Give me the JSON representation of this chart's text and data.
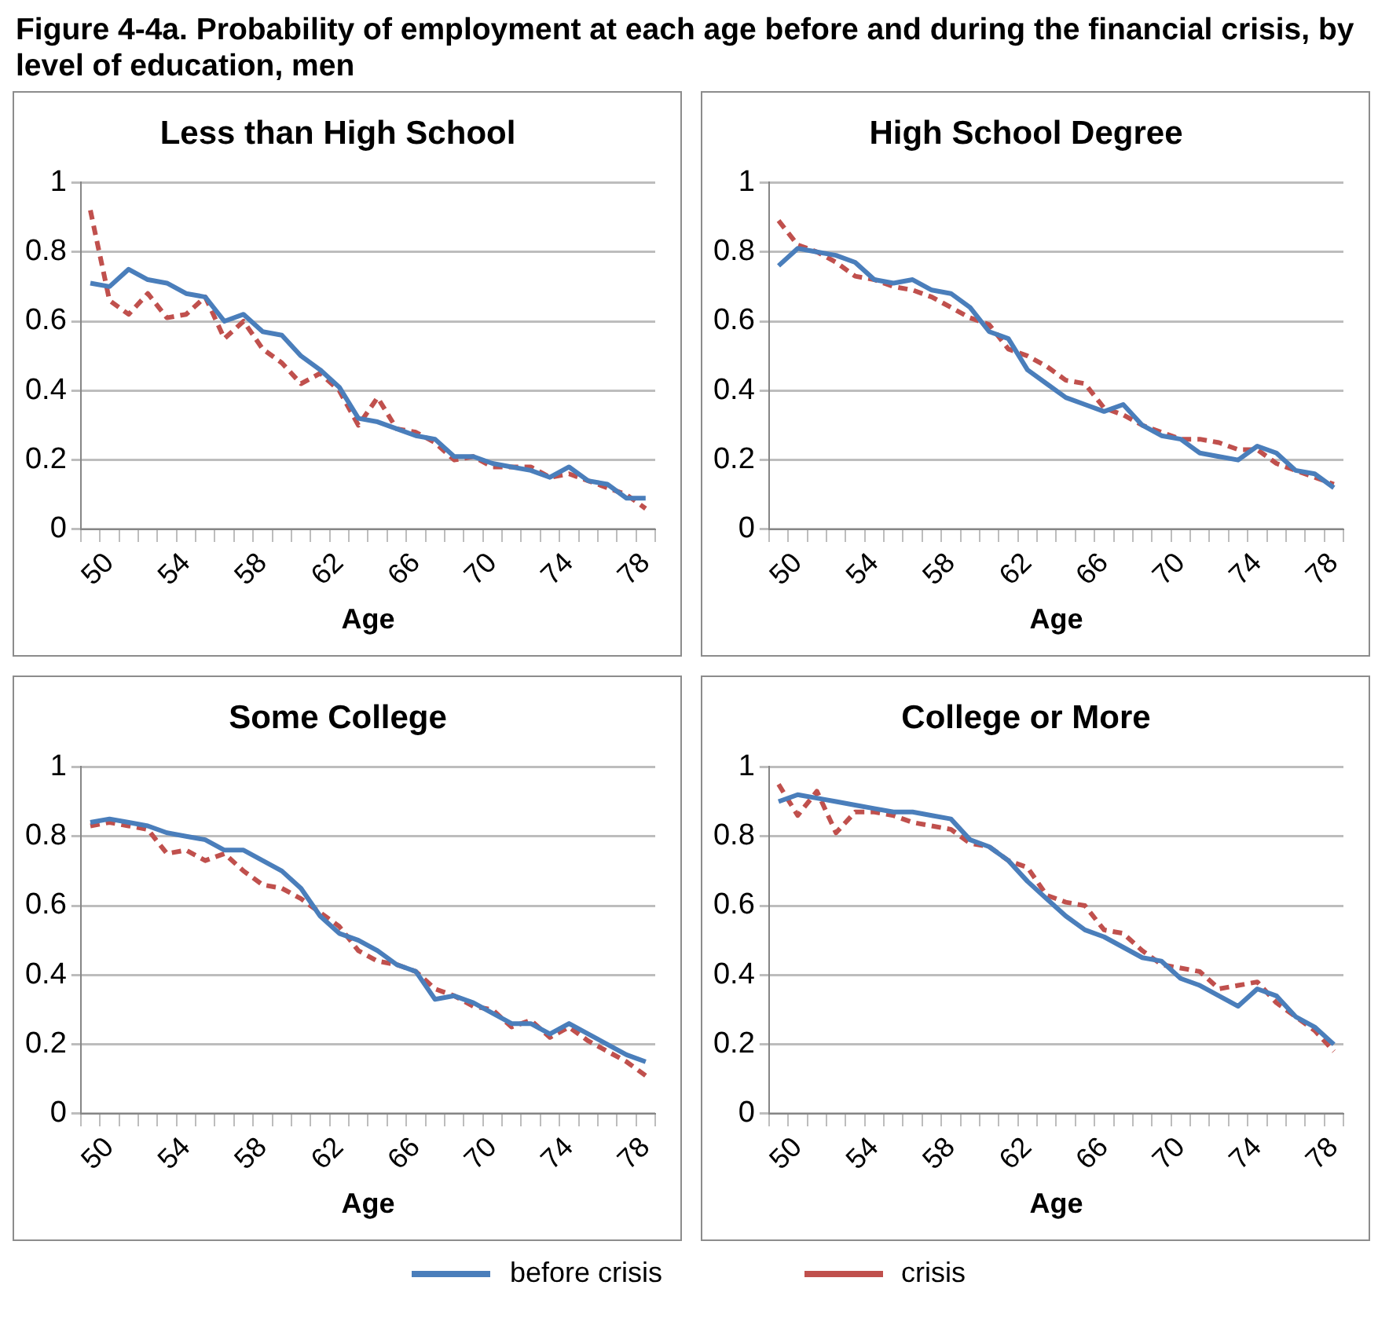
{
  "chart_data": [
    {
      "type": "line",
      "annotations": [
        "Figure 4-4a. Probability of employment at each age before and during the financial crisis, by level of education, men"
      ],
      "title": "Less than High School",
      "xlabel": "Age",
      "categories": [
        null,
        "50",
        null,
        null,
        null,
        "54",
        null,
        null,
        null,
        "58",
        null,
        null,
        null,
        "62",
        null,
        null,
        null,
        "66",
        null,
        null,
        null,
        "70",
        null,
        null,
        null,
        "74",
        null,
        null,
        null,
        "78"
      ],
      "ylim": [
        0,
        1
      ],
      "yticks": [
        0,
        0.2,
        0.4,
        0.6,
        0.8,
        1
      ],
      "grid": "y",
      "legend": "bottom",
      "series": [
        {
          "name": "before crisis",
          "color": "#4a7ebb",
          "line_style": "solid",
          "values": [
            0.71,
            0.7,
            0.75,
            0.72,
            0.71,
            0.68,
            0.67,
            0.6,
            0.62,
            0.57,
            0.56,
            0.5,
            0.46,
            0.41,
            0.32,
            0.31,
            0.29,
            0.27,
            0.26,
            0.21,
            0.21,
            0.19,
            0.18,
            0.17,
            0.15,
            0.18,
            0.14,
            0.13,
            0.09,
            0.09
          ]
        },
        {
          "name": "crisis",
          "color": "#c0504d",
          "line_style": "dashed",
          "values": [
            0.92,
            0.66,
            0.62,
            0.68,
            0.61,
            0.62,
            0.67,
            0.55,
            0.6,
            0.52,
            0.48,
            0.42,
            0.45,
            0.4,
            0.3,
            0.38,
            0.29,
            0.28,
            0.25,
            0.2,
            0.21,
            0.18,
            0.18,
            0.18,
            0.15,
            0.16,
            0.14,
            0.12,
            0.1,
            0.06
          ]
        }
      ]
    },
    {
      "type": "line",
      "title": "High School Degree",
      "xlabel": "Age",
      "categories": [
        null,
        "50",
        null,
        null,
        null,
        "54",
        null,
        null,
        null,
        "58",
        null,
        null,
        null,
        "62",
        null,
        null,
        null,
        "66",
        null,
        null,
        null,
        "70",
        null,
        null,
        null,
        "74",
        null,
        null,
        null,
        "78"
      ],
      "ylim": [
        0,
        1
      ],
      "yticks": [
        0,
        0.2,
        0.4,
        0.6,
        0.8,
        1
      ],
      "grid": "y",
      "series": [
        {
          "color": "#4a7ebb",
          "line_style": "solid",
          "values": [
            0.76,
            0.81,
            0.8,
            0.79,
            0.77,
            0.72,
            0.71,
            0.72,
            0.69,
            0.68,
            0.64,
            0.57,
            0.55,
            0.46,
            0.42,
            0.38,
            0.36,
            0.34,
            0.36,
            0.3,
            0.27,
            0.26,
            0.22,
            0.21,
            0.2,
            0.24,
            0.22,
            0.17,
            0.16,
            0.12
          ]
        },
        {
          "color": "#c0504d",
          "line_style": "dashed",
          "values": [
            0.89,
            0.82,
            0.8,
            0.77,
            0.73,
            0.72,
            0.7,
            0.69,
            0.67,
            0.64,
            0.61,
            0.59,
            0.52,
            0.5,
            0.47,
            0.43,
            0.42,
            0.35,
            0.33,
            0.3,
            0.28,
            0.26,
            0.26,
            0.25,
            0.23,
            0.23,
            0.19,
            0.17,
            0.15,
            0.13
          ]
        }
      ]
    },
    {
      "type": "line",
      "title": "Some College",
      "xlabel": "Age",
      "categories": [
        null,
        "50",
        null,
        null,
        null,
        "54",
        null,
        null,
        null,
        "58",
        null,
        null,
        null,
        "62",
        null,
        null,
        null,
        "66",
        null,
        null,
        null,
        "70",
        null,
        null,
        null,
        "74",
        null,
        null,
        null,
        "78"
      ],
      "ylim": [
        0,
        1
      ],
      "yticks": [
        0,
        0.2,
        0.4,
        0.6,
        0.8,
        1
      ],
      "grid": "y",
      "series": [
        {
          "color": "#4a7ebb",
          "line_style": "solid",
          "values": [
            0.84,
            0.85,
            0.84,
            0.83,
            0.81,
            0.8,
            0.79,
            0.76,
            0.76,
            0.73,
            0.7,
            0.65,
            0.57,
            0.52,
            0.5,
            0.47,
            0.43,
            0.41,
            0.33,
            0.34,
            0.32,
            0.29,
            0.26,
            0.26,
            0.23,
            0.26,
            0.23,
            0.2,
            0.17,
            0.15
          ]
        },
        {
          "color": "#c0504d",
          "line_style": "dashed",
          "values": [
            0.83,
            0.84,
            0.83,
            0.82,
            0.75,
            0.76,
            0.73,
            0.75,
            0.7,
            0.66,
            0.65,
            0.62,
            0.58,
            0.54,
            0.47,
            0.44,
            0.43,
            0.41,
            0.36,
            0.34,
            0.31,
            0.3,
            0.25,
            0.27,
            0.22,
            0.25,
            0.21,
            0.18,
            0.15,
            0.11
          ]
        }
      ]
    },
    {
      "type": "line",
      "title": "College or More",
      "xlabel": "Age",
      "categories": [
        null,
        "50",
        null,
        null,
        null,
        "54",
        null,
        null,
        null,
        "58",
        null,
        null,
        null,
        "62",
        null,
        null,
        null,
        "66",
        null,
        null,
        null,
        "70",
        null,
        null,
        null,
        "74",
        null,
        null,
        null,
        "78"
      ],
      "ylim": [
        0,
        1
      ],
      "yticks": [
        0,
        0.2,
        0.4,
        0.6,
        0.8,
        1
      ],
      "grid": "y",
      "series": [
        {
          "color": "#4a7ebb",
          "line_style": "solid",
          "values": [
            0.9,
            0.92,
            0.91,
            0.9,
            0.89,
            0.88,
            0.87,
            0.87,
            0.86,
            0.85,
            0.79,
            0.77,
            0.73,
            0.67,
            0.62,
            0.57,
            0.53,
            0.51,
            0.48,
            0.45,
            0.44,
            0.39,
            0.37,
            0.34,
            0.31,
            0.36,
            0.34,
            0.28,
            0.25,
            0.2
          ]
        },
        {
          "color": "#c0504d",
          "line_style": "dashed",
          "values": [
            0.95,
            0.86,
            0.93,
            0.81,
            0.87,
            0.87,
            0.86,
            0.84,
            0.83,
            0.82,
            0.78,
            0.77,
            0.73,
            0.71,
            0.63,
            0.61,
            0.6,
            0.53,
            0.52,
            0.47,
            0.43,
            0.42,
            0.41,
            0.36,
            0.37,
            0.38,
            0.32,
            0.28,
            0.24,
            0.18
          ]
        }
      ]
    }
  ]
}
